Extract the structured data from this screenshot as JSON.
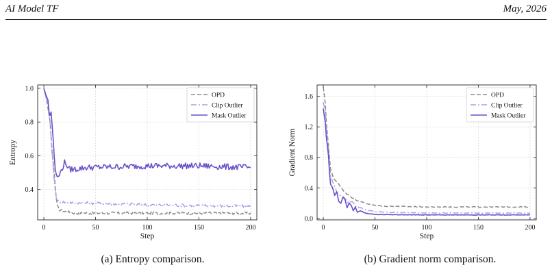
{
  "header": {
    "left": "AI Model TF",
    "right": "May, 2026"
  },
  "captions": {
    "a": "(a) Entropy comparison.",
    "b": "(b) Gradient norm comparison."
  },
  "colors": {
    "opd": "#888888",
    "clip": "#ae9be6",
    "mask": "#6a4fc9"
  },
  "chart_data": [
    {
      "type": "line",
      "xlabel": "Step",
      "ylabel": "Entropy",
      "xlim": [
        -6,
        206
      ],
      "ylim": [
        0.22,
        1.02
      ],
      "xticks": [
        0,
        50,
        100,
        150,
        200
      ],
      "yticks": [
        0.4,
        0.6,
        0.8,
        1.0
      ],
      "ytick_labels": [
        "0.4",
        "0.6",
        "0.8",
        "1.0"
      ],
      "grid": true,
      "legend_position": "top-right",
      "series": [
        {
          "name": "OPD",
          "style": "dashed",
          "color_key": "opd",
          "points": [
            [
              0,
              1.0
            ],
            [
              2,
              0.95
            ],
            [
              4,
              0.88
            ],
            [
              6,
              0.8
            ],
            [
              8,
              0.62
            ],
            [
              10,
              0.5
            ],
            [
              11,
              0.42
            ],
            [
              12,
              0.35
            ],
            [
              13,
              0.3
            ],
            [
              15,
              0.28
            ],
            [
              20,
              0.27
            ],
            [
              25,
              0.265
            ],
            [
              30,
              0.26
            ],
            [
              200,
              0.26
            ]
          ],
          "noise": 0.008
        },
        {
          "name": "Clip Outlier",
          "style": "dashdot",
          "color_key": "clip",
          "points": [
            [
              0,
              1.0
            ],
            [
              2,
              0.95
            ],
            [
              4,
              0.9
            ],
            [
              6,
              0.8
            ],
            [
              8,
              0.62
            ],
            [
              10,
              0.45
            ],
            [
              12,
              0.35
            ],
            [
              14,
              0.33
            ],
            [
              20,
              0.325
            ],
            [
              40,
              0.32
            ],
            [
              100,
              0.31
            ],
            [
              150,
              0.305
            ],
            [
              200,
              0.3
            ]
          ],
          "noise": 0.009
        },
        {
          "name": "Mask Outlier",
          "style": "solid",
          "color_key": "mask",
          "points": [
            [
              0,
              1.0
            ],
            [
              2,
              0.96
            ],
            [
              4,
              0.93
            ],
            [
              5,
              0.86
            ],
            [
              6,
              0.84
            ],
            [
              7,
              0.86
            ],
            [
              8,
              0.78
            ],
            [
              9,
              0.7
            ],
            [
              10,
              0.6
            ],
            [
              11,
              0.52
            ],
            [
              12,
              0.49
            ],
            [
              14,
              0.47
            ],
            [
              16,
              0.5
            ],
            [
              20,
              0.56
            ],
            [
              22,
              0.55
            ],
            [
              24,
              0.52
            ],
            [
              30,
              0.52
            ],
            [
              40,
              0.53
            ],
            [
              100,
              0.54
            ],
            [
              150,
              0.54
            ],
            [
              200,
              0.53
            ]
          ],
          "noise": 0.018
        }
      ]
    },
    {
      "type": "line",
      "xlabel": "Step",
      "ylabel": "Gradient Norm",
      "xlim": [
        -6,
        206
      ],
      "ylim": [
        -0.02,
        1.75
      ],
      "xticks": [
        0,
        50,
        100,
        150,
        200
      ],
      "yticks": [
        0.0,
        0.4,
        0.8,
        1.2,
        1.6
      ],
      "ytick_labels": [
        "0.0",
        "0.4",
        "0.8",
        "1.2",
        "1.6"
      ],
      "grid": true,
      "legend_position": "top-right",
      "series": [
        {
          "name": "OPD",
          "style": "dashed",
          "color_key": "opd",
          "points": [
            [
              0,
              1.72
            ],
            [
              2,
              1.5
            ],
            [
              3,
              1.25
            ],
            [
              5,
              0.95
            ],
            [
              7,
              0.65
            ],
            [
              10,
              0.52
            ],
            [
              15,
              0.45
            ],
            [
              20,
              0.35
            ],
            [
              25,
              0.3
            ],
            [
              30,
              0.25
            ],
            [
              40,
              0.2
            ],
            [
              50,
              0.17
            ],
            [
              60,
              0.16
            ],
            [
              100,
              0.15
            ],
            [
              200,
              0.15
            ]
          ],
          "noise": 0.006
        },
        {
          "name": "Clip Outlier",
          "style": "dashdot",
          "color_key": "clip",
          "points": [
            [
              0,
              1.52
            ],
            [
              2,
              1.4
            ],
            [
              3,
              1.2
            ],
            [
              5,
              0.9
            ],
            [
              7,
              0.55
            ],
            [
              10,
              0.45
            ],
            [
              13,
              0.35
            ],
            [
              16,
              0.3
            ],
            [
              20,
              0.28
            ],
            [
              24,
              0.2
            ],
            [
              28,
              0.22
            ],
            [
              32,
              0.15
            ],
            [
              36,
              0.14
            ],
            [
              40,
              0.12
            ],
            [
              45,
              0.1
            ],
            [
              50,
              0.09
            ],
            [
              60,
              0.08
            ],
            [
              100,
              0.07
            ],
            [
              200,
              0.07
            ]
          ],
          "noise": 0.004
        },
        {
          "name": "Mask Outlier",
          "style": "solid",
          "color_key": "mask",
          "points": [
            [
              0,
              1.44
            ],
            [
              2,
              1.25
            ],
            [
              3,
              1.05
            ],
            [
              4,
              0.95
            ],
            [
              5,
              0.82
            ],
            [
              6,
              0.6
            ],
            [
              7,
              0.45
            ],
            [
              9,
              0.4
            ],
            [
              11,
              0.3
            ],
            [
              13,
              0.35
            ],
            [
              15,
              0.22
            ],
            [
              17,
              0.2
            ],
            [
              19,
              0.28
            ],
            [
              21,
              0.25
            ],
            [
              23,
              0.14
            ],
            [
              25,
              0.2
            ],
            [
              27,
              0.17
            ],
            [
              29,
              0.1
            ],
            [
              31,
              0.15
            ],
            [
              33,
              0.08
            ],
            [
              36,
              0.1
            ],
            [
              40,
              0.07
            ],
            [
              45,
              0.06
            ],
            [
              50,
              0.05
            ],
            [
              100,
              0.045
            ],
            [
              200,
              0.045
            ]
          ],
          "noise": 0.003
        }
      ]
    }
  ]
}
